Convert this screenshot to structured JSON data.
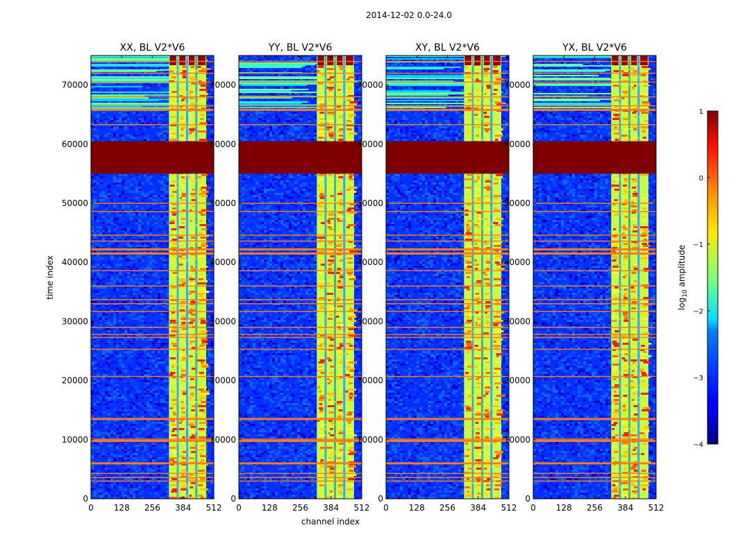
{
  "chart_data": {
    "type": "heatmap",
    "title": "2014-12-02 0.0-24.0",
    "xlabel": "channel index",
    "ylabel": "time index",
    "xlim": [
      0,
      512
    ],
    "ylim": [
      0,
      75000
    ],
    "xticks": [
      "0",
      "128",
      "256",
      "384",
      "512"
    ],
    "yticks": [
      "0",
      "10000",
      "20000",
      "30000",
      "40000",
      "50000",
      "60000",
      "70000"
    ],
    "panels": [
      {
        "name": "XX, BL V2*V6"
      },
      {
        "name": "YY, BL V2*V6"
      },
      {
        "name": "XY, BL V2*V6"
      },
      {
        "name": "YX, BL V2*V6"
      }
    ],
    "colorbar": {
      "label": "log10 amplitude",
      "label_base": "log",
      "label_sub": "10",
      "label_rest": " amplitude",
      "range": [
        -4,
        1
      ],
      "ticks": [
        "1",
        "0",
        "−1",
        "−2",
        "−3",
        "−4"
      ]
    },
    "saturated_time_range": [
      55000,
      60500
    ],
    "rfi_channel_range": [
      325,
      480
    ],
    "grid": false,
    "colormap": "jet"
  }
}
